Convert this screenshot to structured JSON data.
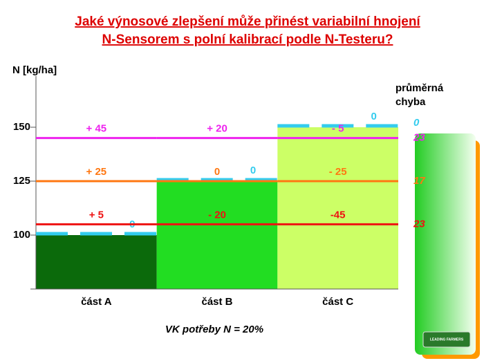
{
  "chart_data": {
    "type": "step-bar",
    "title": [
      "Jaké výnosové zlepšení může přinést variabilní hnojení",
      "N-Sensorem s polní kalibrací podle N-Testeru?"
    ],
    "y_label": "N [kg/ha]",
    "categories": [
      "část A",
      "část B",
      "část C"
    ],
    "values": [
      100,
      125,
      150
    ],
    "colors": [
      "#0b6a0b",
      "#22dd22",
      "#ccff66"
    ],
    "ylim": [
      75,
      175
    ],
    "yticks": [
      100,
      125,
      150
    ],
    "error_header": "průměrná chyba",
    "reference_lines": [
      {
        "color": "#33ccee",
        "dashed": true,
        "values": [
          100,
          125,
          150
        ],
        "labels": [
          "0",
          "0",
          "0"
        ],
        "error": 0
      },
      {
        "color": "#ee22ee",
        "dashed": false,
        "values": [
          145,
          145,
          145
        ],
        "labels": [
          "+ 45",
          "+ 20",
          "- 5"
        ],
        "error": 23
      },
      {
        "color": "#ff7711",
        "dashed": false,
        "values": [
          125,
          125,
          125
        ],
        "labels": [
          "+ 25",
          "0",
          "- 25"
        ],
        "error": 17
      },
      {
        "color": "#ee1111",
        "dashed": false,
        "values": [
          105,
          105,
          105
        ],
        "labels": [
          "+ 5",
          "- 20",
          "-45"
        ],
        "error": 23
      }
    ],
    "footnote": "VK potřeby N = 20%",
    "logo": "LEADING FARMERS"
  }
}
